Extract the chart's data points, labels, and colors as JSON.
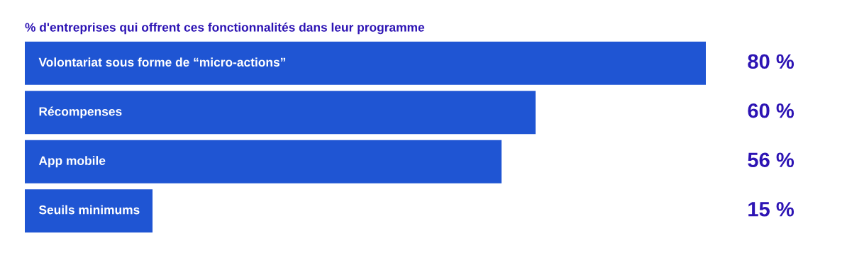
{
  "chart_data": {
    "type": "bar",
    "orientation": "horizontal",
    "title": "% d'entreprises qui offrent ces fonctionnalités dans leur programme",
    "categories": [
      "Volontariat sous forme de “micro-actions”",
      "Récompenses",
      "App mobile",
      "Seuils minimums"
    ],
    "values": [
      80,
      60,
      56,
      15
    ],
    "value_labels": [
      "80 %",
      "60 %",
      "56 %",
      "15 %"
    ],
    "color": "#1f55d3",
    "grid": false,
    "legend": false,
    "tick_labels": false
  }
}
